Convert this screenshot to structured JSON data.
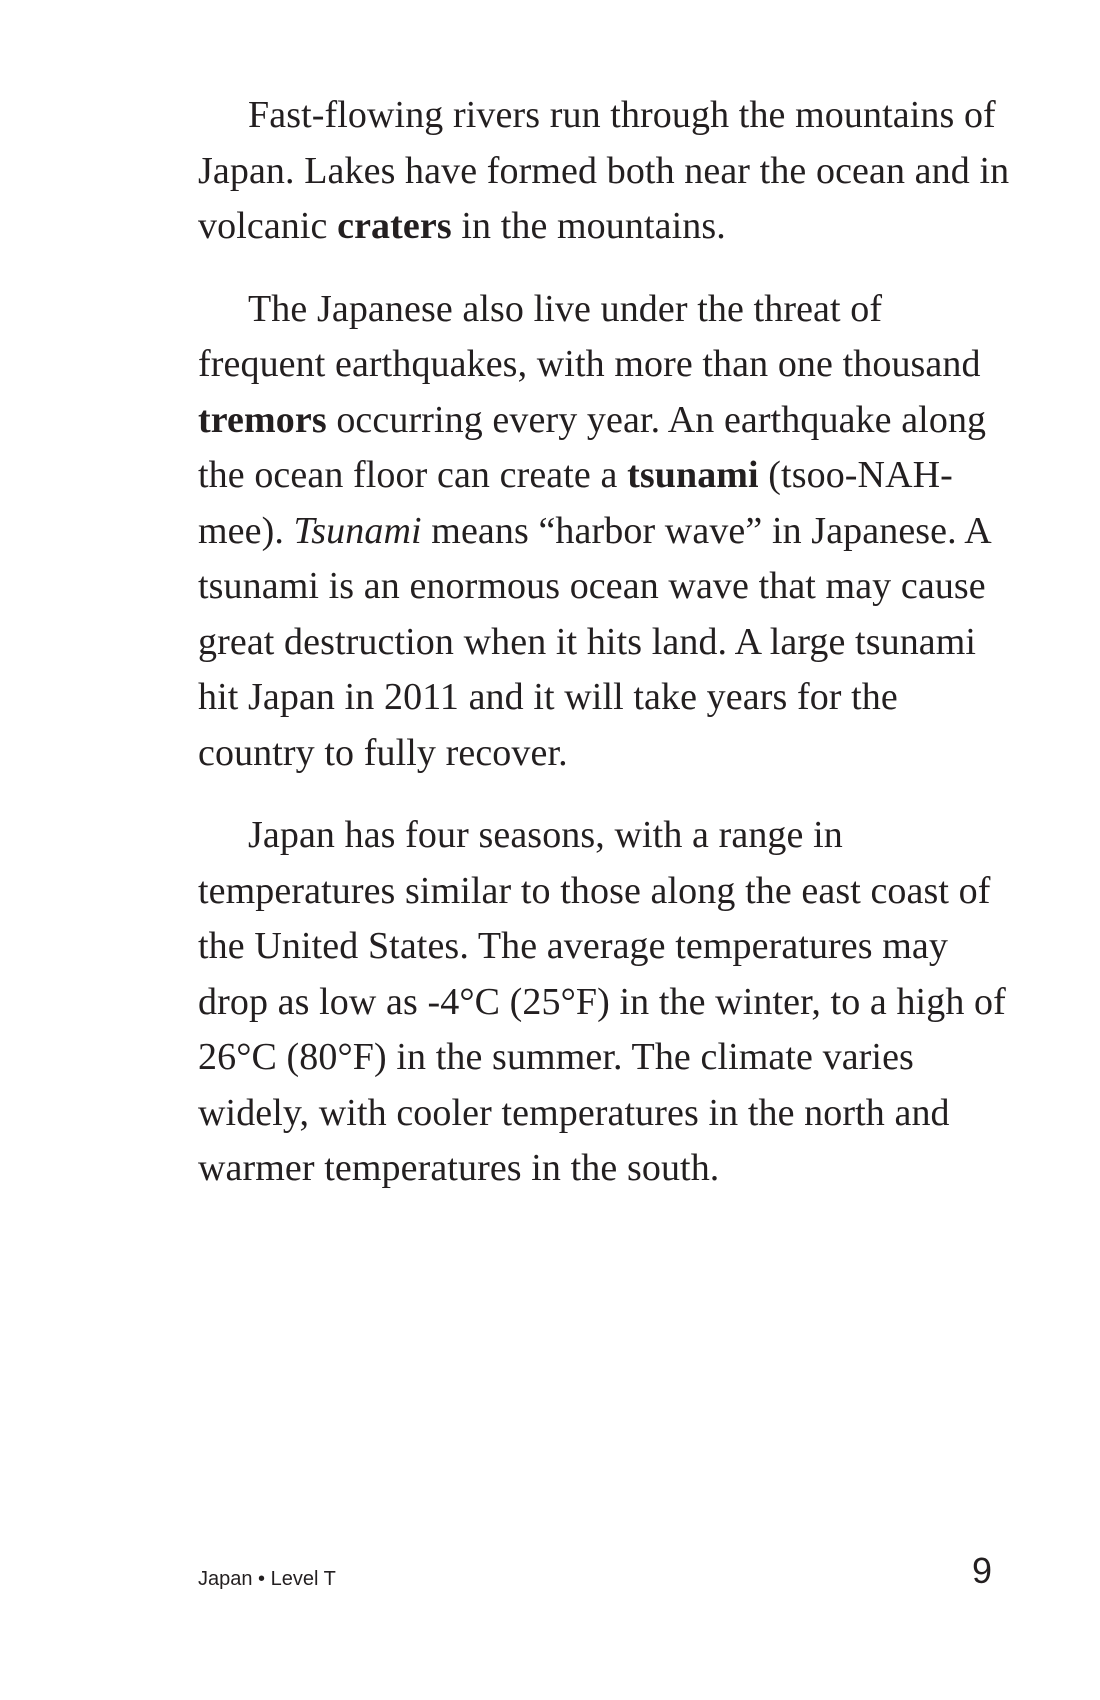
{
  "paragraphs": [
    {
      "segments": [
        {
          "text": "Fast-flowing rivers run through the mountains of Japan. Lakes have formed both near the ocean and in volcanic ",
          "style": "normal"
        },
        {
          "text": "craters",
          "style": "bold"
        },
        {
          "text": " in the mountains.",
          "style": "normal"
        }
      ]
    },
    {
      "segments": [
        {
          "text": "The Japanese also live under the threat of frequent earthquakes, with more than one thousand ",
          "style": "normal"
        },
        {
          "text": "tremors",
          "style": "bold"
        },
        {
          "text": " occurring every year. An earthquake along the ocean floor can create a ",
          "style": "normal"
        },
        {
          "text": "tsunami",
          "style": "bold"
        },
        {
          "text": " (tsoo-NAH-mee). ",
          "style": "normal"
        },
        {
          "text": "Tsunami",
          "style": "italic"
        },
        {
          "text": " means “harbor wave” in Japanese. A tsunami is an enormous ocean wave that may cause great destruction when it hits land. A large tsunami hit Japan in 2011 and it will take years for the country to fully recover.",
          "style": "normal"
        }
      ]
    },
    {
      "segments": [
        {
          "text": "Japan has four seasons, with a range in temperatures similar to those along the east coast of the United States. The average temperatures may drop as low as -4°C (25°F) in the winter, to a high of 26°C (80°F) in the summer. The climate varies widely, with cooler temperatures in the north and warmer temperatures in the south.",
          "style": "normal"
        }
      ]
    }
  ],
  "footer": {
    "book_label": "Japan • Level T",
    "page_number": "9"
  }
}
